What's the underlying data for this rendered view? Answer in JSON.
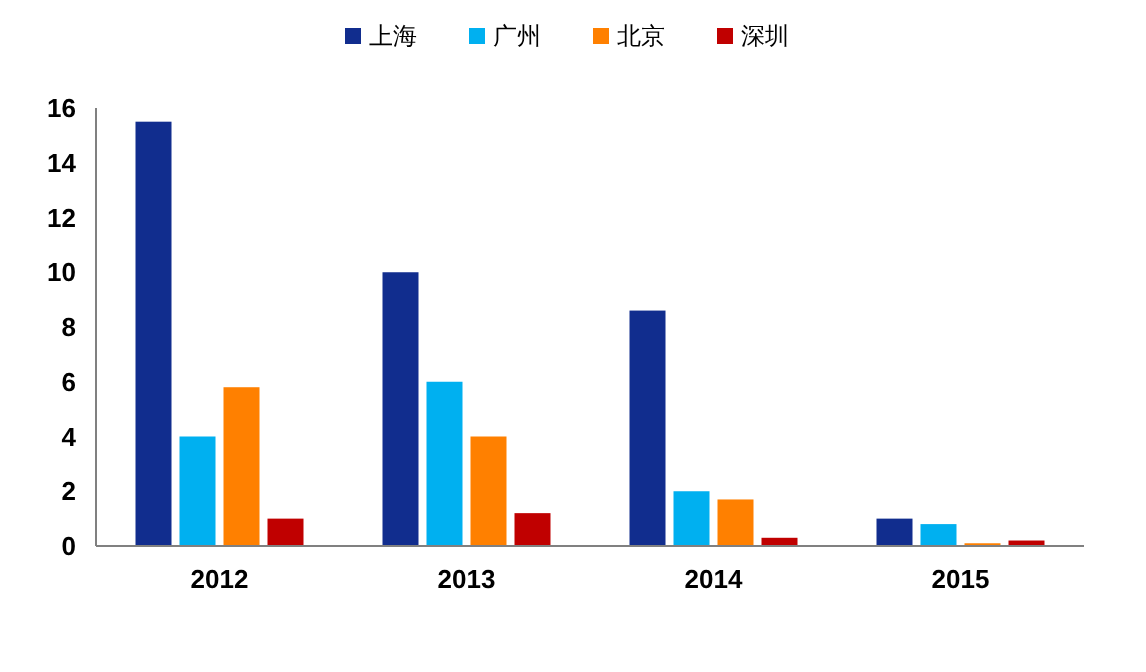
{
  "chart_data": {
    "type": "bar",
    "categories": [
      "2012",
      "2013",
      "2014",
      "2015"
    ],
    "series": [
      {
        "name": "上海",
        "color": "#112d8e",
        "values": [
          15.5,
          10,
          8.6,
          1.0
        ]
      },
      {
        "name": "广州",
        "color": "#00b0f0",
        "values": [
          4.0,
          6.0,
          2.0,
          0.8
        ]
      },
      {
        "name": "北京",
        "color": "#ff8000",
        "values": [
          5.8,
          4.0,
          1.7,
          0.1
        ]
      },
      {
        "name": "深圳",
        "color": "#c00000",
        "values": [
          1.0,
          1.2,
          0.3,
          0.2
        ]
      }
    ],
    "ylim": [
      0,
      16
    ],
    "yticks": [
      0,
      2,
      4,
      6,
      8,
      10,
      12,
      14,
      16
    ],
    "grid": false,
    "legend": "top"
  }
}
